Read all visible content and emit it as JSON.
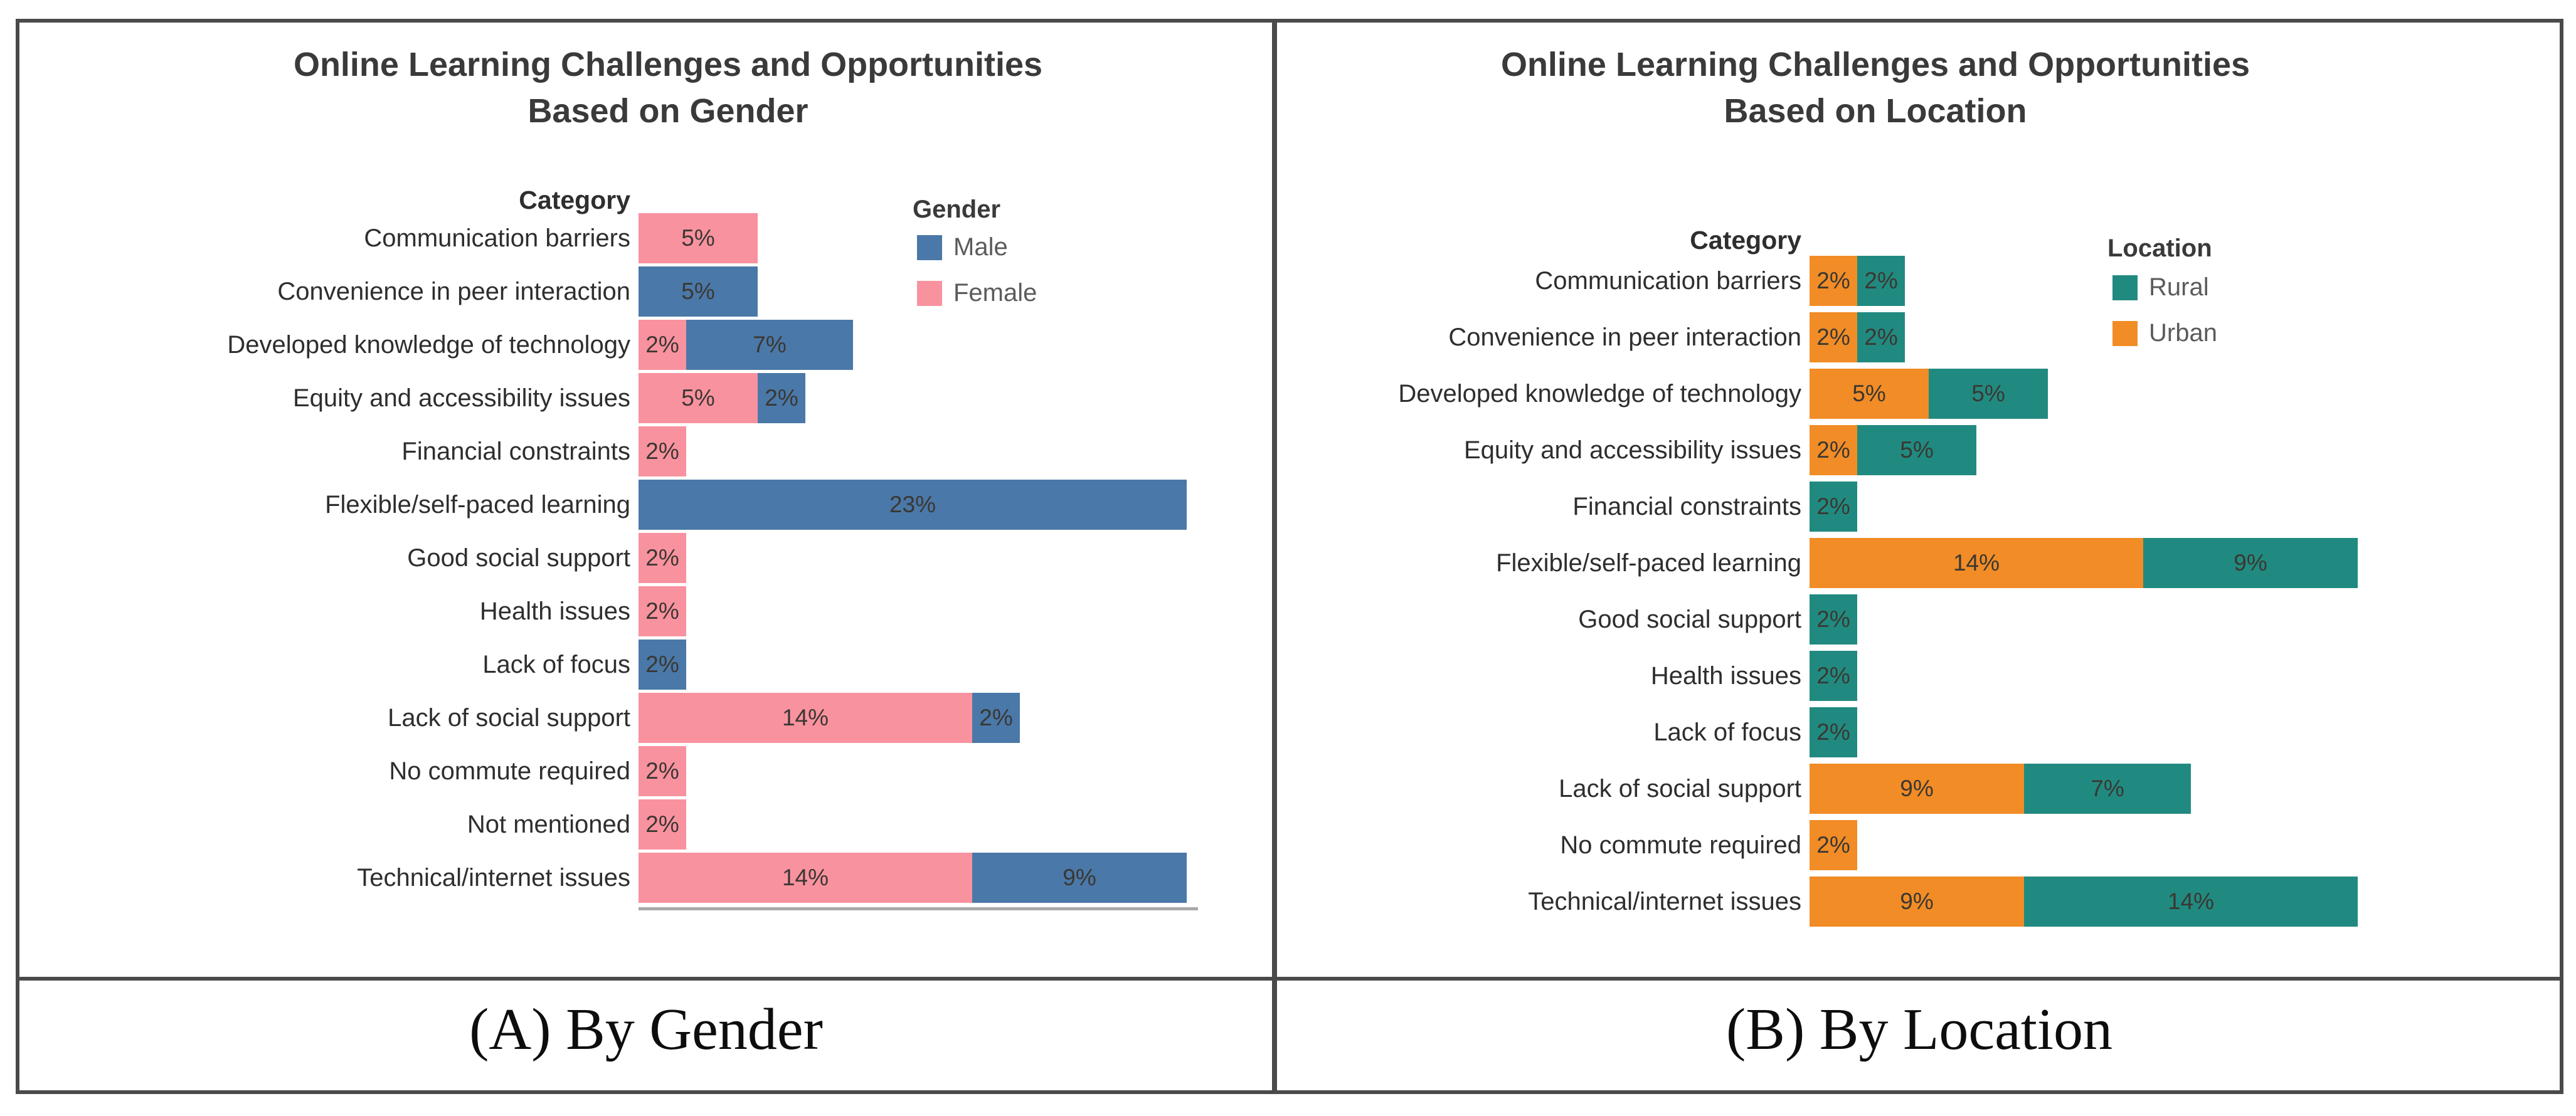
{
  "figure": {
    "captions": {
      "a": "(A) By Gender",
      "b": "(B) By Location"
    }
  },
  "chart_data": [
    {
      "type": "bar",
      "orientation": "horizontal-stacked",
      "title_lines": [
        "Online Learning Challenges and Opportunities",
        "Based on Gender"
      ],
      "row_header": "Category",
      "unit": "%",
      "xlim": [
        0,
        23
      ],
      "grid": false,
      "legend": {
        "title": "Gender",
        "position": "right-top",
        "items": [
          {
            "label": "Male",
            "color": "#4a78a8"
          },
          {
            "label": "Female",
            "color": "#f9929f"
          }
        ]
      },
      "rows": [
        {
          "category": "Communication barriers",
          "segments": [
            {
              "series": "Female",
              "value": 5,
              "label": "5%"
            }
          ]
        },
        {
          "category": "Convenience in peer interaction",
          "segments": [
            {
              "series": "Male",
              "value": 5,
              "label": "5%"
            }
          ]
        },
        {
          "category": "Developed knowledge of technology",
          "segments": [
            {
              "series": "Female",
              "value": 2,
              "label": "2%"
            },
            {
              "series": "Male",
              "value": 7,
              "label": "7%"
            }
          ]
        },
        {
          "category": "Equity and accessibility issues",
          "segments": [
            {
              "series": "Female",
              "value": 5,
              "label": "5%"
            },
            {
              "series": "Male",
              "value": 2,
              "label": "2%"
            }
          ]
        },
        {
          "category": "Financial constraints",
          "segments": [
            {
              "series": "Female",
              "value": 2,
              "label": "2%"
            }
          ]
        },
        {
          "category": "Flexible/self-paced learning",
          "segments": [
            {
              "series": "Male",
              "value": 23,
              "label": "23%"
            }
          ]
        },
        {
          "category": "Good social support",
          "segments": [
            {
              "series": "Female",
              "value": 2,
              "label": "2%"
            }
          ]
        },
        {
          "category": "Health issues",
          "segments": [
            {
              "series": "Female",
              "value": 2,
              "label": "2%"
            }
          ]
        },
        {
          "category": "Lack of focus",
          "segments": [
            {
              "series": "Male",
              "value": 2,
              "label": "2%"
            }
          ]
        },
        {
          "category": "Lack of social support",
          "segments": [
            {
              "series": "Female",
              "value": 14,
              "label": "14%"
            },
            {
              "series": "Male",
              "value": 2,
              "label": "2%"
            }
          ]
        },
        {
          "category": "No commute required",
          "segments": [
            {
              "series": "Female",
              "value": 2,
              "label": "2%"
            }
          ]
        },
        {
          "category": "Not mentioned",
          "segments": [
            {
              "series": "Female",
              "value": 2,
              "label": "2%"
            }
          ]
        },
        {
          "category": "Technical/internet issues",
          "segments": [
            {
              "series": "Female",
              "value": 14,
              "label": "14%"
            },
            {
              "series": "Male",
              "value": 9,
              "label": "9%"
            }
          ]
        }
      ]
    },
    {
      "type": "bar",
      "orientation": "horizontal-stacked",
      "title_lines": [
        "Online Learning Challenges and Opportunities",
        "Based on Location"
      ],
      "row_header": "Category",
      "unit": "%",
      "xlim": [
        0,
        23
      ],
      "grid": false,
      "legend": {
        "title": "Location",
        "position": "right-top",
        "items": [
          {
            "label": "Rural",
            "color": "#218a80"
          },
          {
            "label": "Urban",
            "color": "#f18c26"
          }
        ]
      },
      "rows": [
        {
          "category": "Communication barriers",
          "segments": [
            {
              "series": "Urban",
              "value": 2,
              "label": "2%"
            },
            {
              "series": "Rural",
              "value": 2,
              "label": "2%"
            }
          ]
        },
        {
          "category": "Convenience in peer interaction",
          "segments": [
            {
              "series": "Urban",
              "value": 2,
              "label": "2%"
            },
            {
              "series": "Rural",
              "value": 2,
              "label": "2%"
            }
          ]
        },
        {
          "category": "Developed knowledge of technology",
          "segments": [
            {
              "series": "Urban",
              "value": 5,
              "label": "5%"
            },
            {
              "series": "Rural",
              "value": 5,
              "label": "5%"
            }
          ]
        },
        {
          "category": "Equity and accessibility issues",
          "segments": [
            {
              "series": "Urban",
              "value": 2,
              "label": "2%"
            },
            {
              "series": "Rural",
              "value": 5,
              "label": "5%"
            }
          ]
        },
        {
          "category": "Financial constraints",
          "segments": [
            {
              "series": "Rural",
              "value": 2,
              "label": "2%"
            }
          ]
        },
        {
          "category": "Flexible/self-paced learning",
          "segments": [
            {
              "series": "Urban",
              "value": 14,
              "label": "14%"
            },
            {
              "series": "Rural",
              "value": 9,
              "label": "9%"
            }
          ]
        },
        {
          "category": "Good social support",
          "segments": [
            {
              "series": "Rural",
              "value": 2,
              "label": "2%"
            }
          ]
        },
        {
          "category": "Health issues",
          "segments": [
            {
              "series": "Rural",
              "value": 2,
              "label": "2%"
            }
          ]
        },
        {
          "category": "Lack of focus",
          "segments": [
            {
              "series": "Rural",
              "value": 2,
              "label": "2%"
            }
          ]
        },
        {
          "category": "Lack of social support",
          "segments": [
            {
              "series": "Urban",
              "value": 9,
              "label": "9%"
            },
            {
              "series": "Rural",
              "value": 7,
              "label": "7%"
            }
          ]
        },
        {
          "category": "No commute required",
          "segments": [
            {
              "series": "Urban",
              "value": 2,
              "label": "2%"
            }
          ]
        },
        {
          "category": "Technical/internet issues",
          "segments": [
            {
              "series": "Urban",
              "value": 9,
              "label": "9%"
            },
            {
              "series": "Rural",
              "value": 14,
              "label": "14%"
            }
          ]
        }
      ]
    }
  ]
}
